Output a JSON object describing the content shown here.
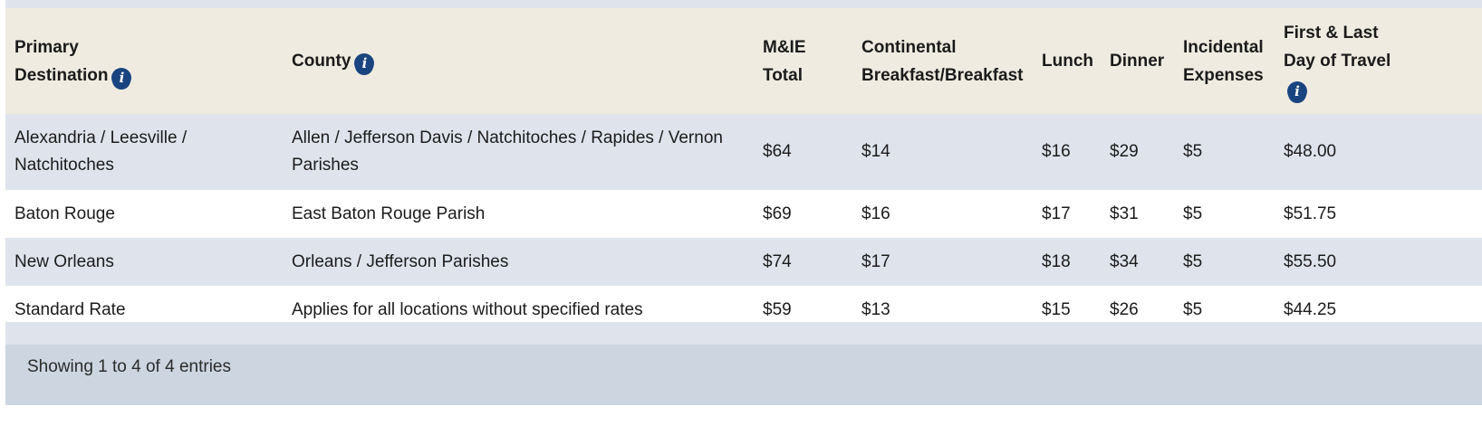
{
  "table": {
    "headers": {
      "primary_destination_line1": "Primary",
      "primary_destination_line2": "Destination",
      "county": "County",
      "mie_line1": "M&IE",
      "mie_line2": "Total",
      "breakfast_line1": "Continental",
      "breakfast_line2": "Breakfast/Breakfast",
      "lunch": "Lunch",
      "dinner": "Dinner",
      "incidental_line1": "Incidental",
      "incidental_line2": "Expenses",
      "first_last_line1": "First & Last",
      "first_last_line2": "Day of Travel",
      "info_glyph": "i"
    },
    "rows": [
      {
        "destination_line1": "Alexandria / Leesville /",
        "destination_line2": "Natchitoches",
        "county_line1": "Allen / Jefferson Davis / Natchitoches / Rapides / Vernon",
        "county_line2": "Parishes",
        "mie_total": "$64",
        "breakfast": "$14",
        "lunch": "$16",
        "dinner": "$29",
        "incidental": "$5",
        "first_last": "$48.00"
      },
      {
        "destination": "Baton Rouge",
        "county": "East Baton Rouge Parish",
        "mie_total": "$69",
        "breakfast": "$16",
        "lunch": "$17",
        "dinner": "$31",
        "incidental": "$5",
        "first_last": "$51.75"
      },
      {
        "destination": "New Orleans",
        "county": "Orleans / Jefferson Parishes",
        "mie_total": "$74",
        "breakfast": "$17",
        "lunch": "$18",
        "dinner": "$34",
        "incidental": "$5",
        "first_last": "$55.50"
      },
      {
        "destination": "Standard Rate",
        "county": "Applies for all locations without specified rates",
        "mie_total": "$59",
        "breakfast": "$13",
        "lunch": "$15",
        "dinner": "$26",
        "incidental": "$5",
        "first_last": "$44.25"
      }
    ]
  },
  "footer": {
    "info": "Showing 1 to 4 of 4 entries"
  },
  "colors": {
    "header_bg": "#efebe1",
    "alt_row_bg": "#dfe4ec",
    "footer_bg": "#ccd5e0",
    "info_icon": "#1a4480"
  },
  "icons": {
    "info": "info-icon"
  }
}
